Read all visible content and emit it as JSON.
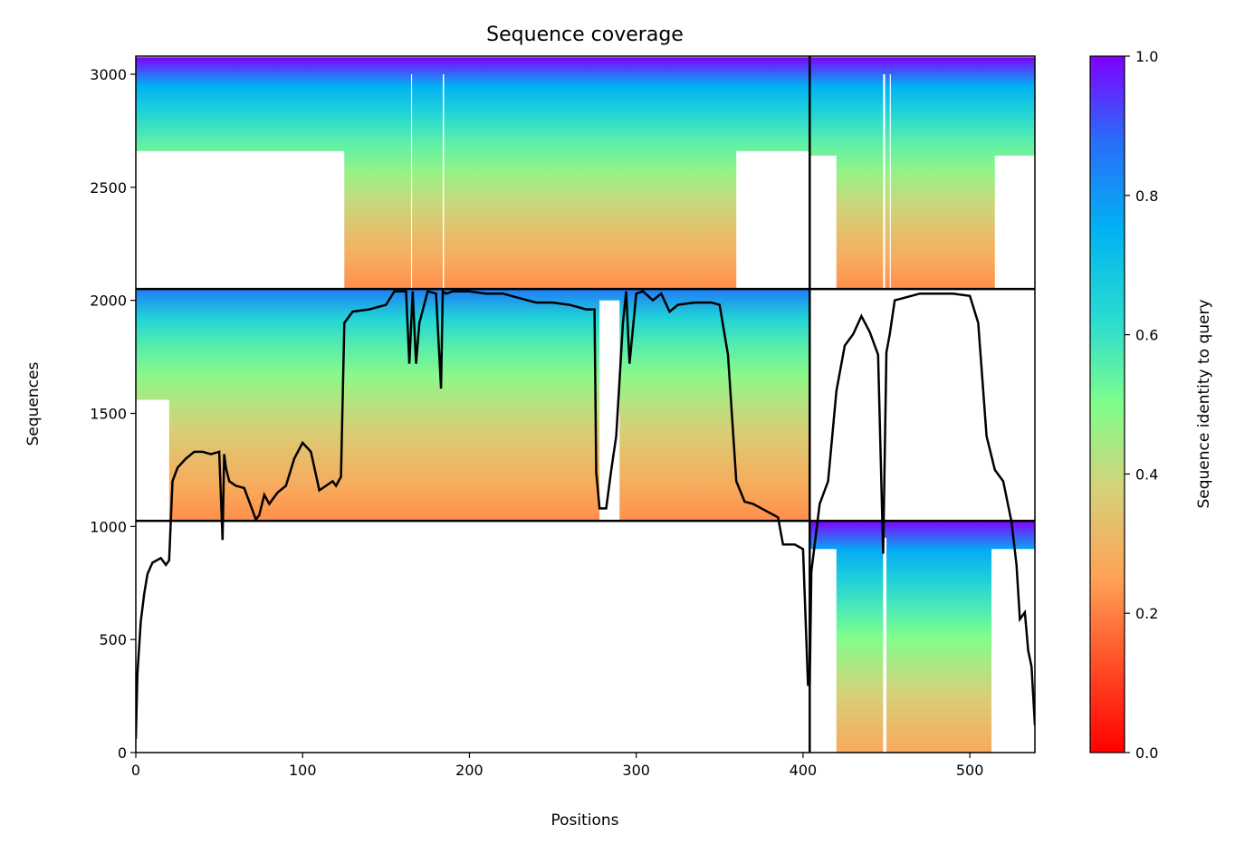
{
  "chart_data": {
    "type": "heatmap",
    "title": "Sequence coverage",
    "xlabel": "Positions",
    "ylabel": "Sequences",
    "xlim": [
      0,
      539
    ],
    "ylim": [
      0,
      3080
    ],
    "xticks": [
      0,
      100,
      200,
      300,
      400,
      500
    ],
    "yticks": [
      0,
      500,
      1000,
      1500,
      2000,
      2500,
      3000
    ],
    "colorbar": {
      "label": "Sequence identity to query",
      "ticks": [
        "0.0",
        "0.2",
        "0.4",
        "0.6",
        "0.8",
        "1.0"
      ],
      "colormap": "rainbow_r",
      "range": [
        0,
        1
      ]
    },
    "chain_boundaries_x": [
      404
    ],
    "chain_boundaries_y": [
      1025,
      2050
    ],
    "blocks": [
      {
        "chain": 1,
        "x": [
          0,
          404
        ],
        "y": [
          2050,
          3075
        ],
        "identity_top": 1.0,
        "identity_bottom": 0.22
      },
      {
        "chain": 2,
        "x": [
          404,
          539
        ],
        "y": [
          2050,
          3075
        ],
        "identity_top": 1.0,
        "identity_bottom": 0.22
      },
      {
        "chain": 1,
        "x": [
          0,
          404
        ],
        "y": [
          1025,
          2050
        ],
        "identity_top": 0.85,
        "identity_bottom": 0.22
      },
      {
        "chain": 2,
        "x": [
          404,
          539
        ],
        "y": [
          0,
          1025
        ],
        "identity_top": 1.0,
        "identity_bottom": 0.27
      }
    ],
    "coverage_line": {
      "x": [
        0,
        1,
        3,
        5,
        7,
        10,
        15,
        18,
        20,
        22,
        25,
        30,
        35,
        40,
        45,
        50,
        52,
        53,
        54,
        56,
        60,
        65,
        70,
        72,
        74,
        77,
        80,
        85,
        90,
        95,
        100,
        105,
        110,
        118,
        120,
        123,
        125,
        130,
        140,
        150,
        155,
        160,
        162,
        164,
        166,
        168,
        170,
        175,
        180,
        183,
        184,
        186,
        190,
        200,
        210,
        220,
        230,
        240,
        250,
        260,
        270,
        275,
        276,
        278,
        282,
        285,
        288,
        292,
        294,
        296,
        300,
        304,
        310,
        315,
        320,
        325,
        335,
        345,
        350,
        355,
        360,
        365,
        370,
        380,
        385,
        388,
        395,
        400,
        403,
        404,
        405,
        410,
        415,
        420,
        425,
        430,
        435,
        440,
        445,
        448,
        450,
        452,
        455,
        460,
        465,
        470,
        480,
        490,
        500,
        505,
        510,
        515,
        520,
        525,
        528,
        530,
        533,
        535,
        537,
        539
      ],
      "y": [
        60,
        350,
        580,
        700,
        790,
        840,
        860,
        830,
        850,
        1200,
        1260,
        1300,
        1330,
        1330,
        1320,
        1330,
        940,
        1320,
        1260,
        1200,
        1180,
        1170,
        1070,
        1030,
        1050,
        1140,
        1100,
        1150,
        1180,
        1300,
        1370,
        1330,
        1160,
        1200,
        1180,
        1220,
        1900,
        1950,
        1960,
        1980,
        2040,
        2040,
        2040,
        1720,
        2040,
        1720,
        1900,
        2040,
        2030,
        1610,
        2040,
        2030,
        2040,
        2040,
        2030,
        2030,
        2010,
        1990,
        1990,
        1980,
        1960,
        1960,
        1240,
        1080,
        1080,
        1250,
        1400,
        1900,
        2040,
        1720,
        2030,
        2040,
        2000,
        2030,
        1950,
        1980,
        1990,
        1990,
        1980,
        1760,
        1200,
        1110,
        1100,
        1060,
        1040,
        920,
        920,
        900,
        300,
        300,
        800,
        1100,
        1200,
        1600,
        1800,
        1850,
        1930,
        1860,
        1760,
        880,
        1770,
        1850,
        2000,
        2010,
        2020,
        2030,
        2030,
        2030,
        2020,
        1900,
        1400,
        1250,
        1200,
        1020,
        830,
        590,
        620,
        450,
        380,
        120
      ]
    }
  }
}
